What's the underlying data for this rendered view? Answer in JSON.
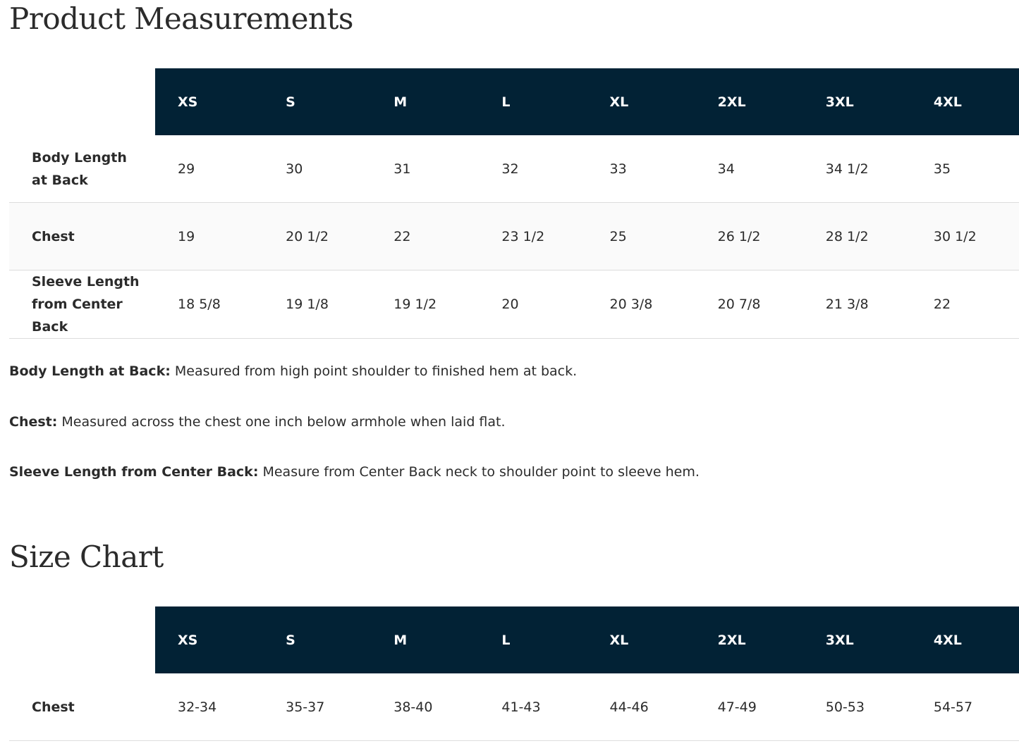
{
  "measurements": {
    "title": "Product Measurements",
    "sizes": [
      "XS",
      "S",
      "M",
      "L",
      "XL",
      "2XL",
      "3XL",
      "4XL"
    ],
    "rows": [
      {
        "label": "Body Length at Back",
        "values": [
          "29",
          "30",
          "31",
          "32",
          "33",
          "34",
          "34 1/2",
          "35"
        ]
      },
      {
        "label": "Chest",
        "values": [
          "19",
          "20 1/2",
          "22",
          "23 1/2",
          "25",
          "26 1/2",
          "28 1/2",
          "30 1/2"
        ]
      },
      {
        "label": "Sleeve Length from Center Back",
        "values": [
          "18 5/8",
          "19 1/8",
          "19 1/2",
          "20",
          "20 3/8",
          "20 7/8",
          "21 3/8",
          "22"
        ]
      }
    ]
  },
  "notes": [
    {
      "term": "Body Length at Back:",
      "text": "Measured from high point shoulder to finished hem at back."
    },
    {
      "term": "Chest:",
      "text": "Measured across the chest one inch below armhole when laid flat."
    },
    {
      "term": "Sleeve Length from Center Back:",
      "text": "Measure from Center Back neck to shoulder point to sleeve hem."
    }
  ],
  "size_chart": {
    "title": "Size Chart",
    "sizes": [
      "XS",
      "S",
      "M",
      "L",
      "XL",
      "2XL",
      "3XL",
      "4XL"
    ],
    "rows": [
      {
        "label": "Chest",
        "values": [
          "32-34",
          "35-37",
          "38-40",
          "41-43",
          "44-46",
          "47-49",
          "50-53",
          "54-57"
        ]
      }
    ]
  }
}
